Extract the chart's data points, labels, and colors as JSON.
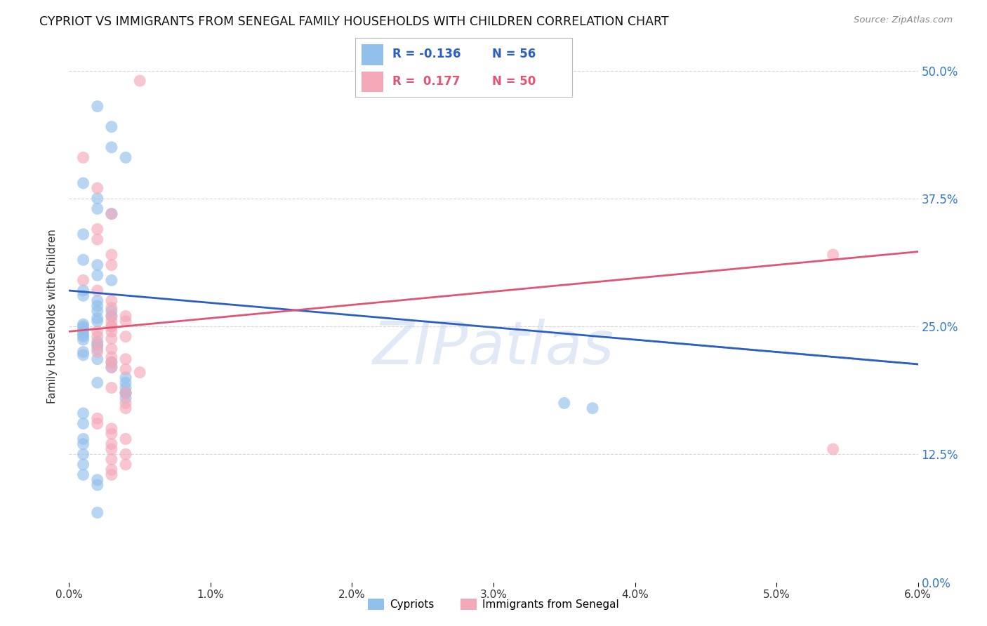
{
  "title": "CYPRIOT VS IMMIGRANTS FROM SENEGAL FAMILY HOUSEHOLDS WITH CHILDREN CORRELATION CHART",
  "source": "Source: ZipAtlas.com",
  "ylabel": "Family Households with Children",
  "xlim": [
    0.0,
    0.06
  ],
  "ylim": [
    0.0,
    0.52
  ],
  "xtick_vals": [
    0.0,
    0.01,
    0.02,
    0.03,
    0.04,
    0.05,
    0.06
  ],
  "xtick_labels": [
    "0.0%",
    "1.0%",
    "2.0%",
    "3.0%",
    "4.0%",
    "5.0%",
    "6.0%"
  ],
  "ytick_vals": [
    0.0,
    0.125,
    0.25,
    0.375,
    0.5
  ],
  "ytick_labels_r": [
    "0.0%",
    "12.5%",
    "25.0%",
    "37.5%",
    "50.0%"
  ],
  "legend_r_blue": "-0.136",
  "legend_n_blue": "56",
  "legend_r_pink": "0.177",
  "legend_n_pink": "50",
  "blue_color": "#92C0EC",
  "pink_color": "#F4A8B8",
  "blue_line_color": "#2B5FC4",
  "pink_line_color": "#E05575",
  "watermark": "ZIPatlas",
  "background_color": "#FFFFFF",
  "grid_color": "#CCCCCC",
  "blue_scatter_x": [
    0.002,
    0.003,
    0.003,
    0.004,
    0.001,
    0.002,
    0.002,
    0.003,
    0.001,
    0.001,
    0.002,
    0.002,
    0.003,
    0.001,
    0.001,
    0.002,
    0.002,
    0.002,
    0.003,
    0.003,
    0.002,
    0.002,
    0.001,
    0.001,
    0.001,
    0.001,
    0.001,
    0.001,
    0.001,
    0.002,
    0.002,
    0.002,
    0.001,
    0.001,
    0.002,
    0.003,
    0.003,
    0.004,
    0.004,
    0.004,
    0.002,
    0.004,
    0.004,
    0.004,
    0.035,
    0.037,
    0.001,
    0.001,
    0.001,
    0.001,
    0.001,
    0.001,
    0.001,
    0.002,
    0.002,
    0.002
  ],
  "blue_scatter_y": [
    0.465,
    0.445,
    0.425,
    0.415,
    0.39,
    0.375,
    0.365,
    0.36,
    0.34,
    0.315,
    0.31,
    0.3,
    0.295,
    0.285,
    0.28,
    0.275,
    0.27,
    0.265,
    0.265,
    0.26,
    0.258,
    0.255,
    0.252,
    0.25,
    0.248,
    0.245,
    0.242,
    0.24,
    0.237,
    0.235,
    0.232,
    0.228,
    0.225,
    0.222,
    0.218,
    0.215,
    0.21,
    0.2,
    0.195,
    0.185,
    0.195,
    0.19,
    0.185,
    0.18,
    0.175,
    0.17,
    0.165,
    0.155,
    0.14,
    0.135,
    0.125,
    0.115,
    0.105,
    0.1,
    0.095,
    0.068
  ],
  "pink_scatter_x": [
    0.005,
    0.001,
    0.002,
    0.003,
    0.002,
    0.002,
    0.003,
    0.003,
    0.001,
    0.002,
    0.003,
    0.003,
    0.004,
    0.003,
    0.003,
    0.002,
    0.002,
    0.003,
    0.002,
    0.003,
    0.002,
    0.003,
    0.004,
    0.003,
    0.003,
    0.004,
    0.005,
    0.003,
    0.004,
    0.003,
    0.003,
    0.004,
    0.003,
    0.004,
    0.004,
    0.004,
    0.054,
    0.002,
    0.002,
    0.003,
    0.003,
    0.004,
    0.003,
    0.003,
    0.004,
    0.003,
    0.004,
    0.003,
    0.003,
    0.054
  ],
  "pink_scatter_y": [
    0.49,
    0.415,
    0.385,
    0.36,
    0.345,
    0.335,
    0.32,
    0.31,
    0.295,
    0.285,
    0.275,
    0.268,
    0.26,
    0.255,
    0.25,
    0.245,
    0.24,
    0.238,
    0.232,
    0.228,
    0.225,
    0.22,
    0.218,
    0.215,
    0.21,
    0.208,
    0.205,
    0.26,
    0.255,
    0.25,
    0.245,
    0.24,
    0.19,
    0.185,
    0.175,
    0.17,
    0.13,
    0.16,
    0.155,
    0.15,
    0.145,
    0.14,
    0.135,
    0.13,
    0.125,
    0.12,
    0.115,
    0.11,
    0.105,
    0.32
  ]
}
